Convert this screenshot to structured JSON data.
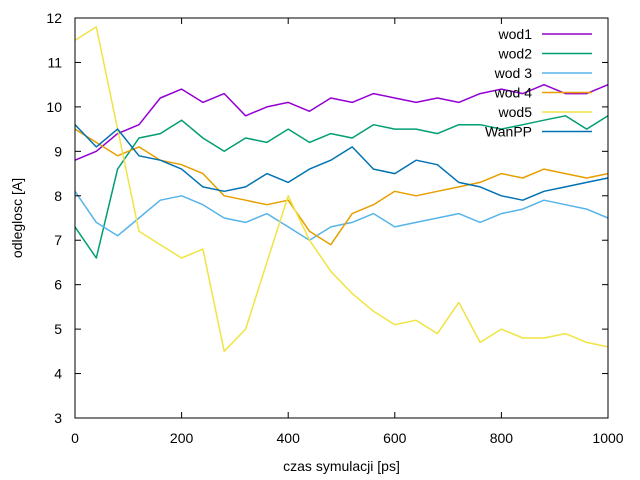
{
  "chart_data": {
    "type": "line",
    "title": "",
    "xlabel": "czas symulacji [ps]",
    "ylabel": "odleglosc [A]",
    "xlim": [
      0,
      1000
    ],
    "ylim": [
      3,
      12
    ],
    "xticks": [
      0,
      200,
      400,
      600,
      800,
      1000
    ],
    "yticks": [
      3,
      4,
      5,
      6,
      7,
      8,
      9,
      10,
      11,
      12
    ],
    "legend_position": "top-right",
    "grid": false,
    "x": [
      0,
      40,
      80,
      120,
      160,
      200,
      240,
      280,
      320,
      360,
      400,
      440,
      480,
      520,
      560,
      600,
      640,
      680,
      720,
      760,
      800,
      840,
      880,
      920,
      960,
      1000
    ],
    "series": [
      {
        "name": "wod1",
        "color": "#9400d3",
        "values": [
          8.8,
          9.0,
          9.4,
          9.6,
          10.2,
          10.4,
          10.1,
          10.3,
          9.8,
          10.0,
          10.1,
          9.9,
          10.2,
          10.1,
          10.3,
          10.2,
          10.1,
          10.2,
          10.1,
          10.3,
          10.4,
          10.3,
          10.5,
          10.3,
          10.3,
          10.5
        ]
      },
      {
        "name": "wod2",
        "color": "#009e73",
        "values": [
          7.3,
          6.6,
          8.6,
          9.3,
          9.4,
          9.7,
          9.3,
          9.0,
          9.3,
          9.2,
          9.5,
          9.2,
          9.4,
          9.3,
          9.6,
          9.5,
          9.5,
          9.4,
          9.6,
          9.6,
          9.5,
          9.6,
          9.7,
          9.8,
          9.5,
          9.8
        ]
      },
      {
        "name": "wod 3",
        "color": "#56b4e9",
        "values": [
          8.1,
          7.4,
          7.1,
          7.5,
          7.9,
          8.0,
          7.8,
          7.5,
          7.4,
          7.6,
          7.3,
          7.0,
          7.3,
          7.4,
          7.6,
          7.3,
          7.4,
          7.5,
          7.6,
          7.4,
          7.6,
          7.7,
          7.9,
          7.8,
          7.7,
          7.5
        ]
      },
      {
        "name": "wod 4",
        "color": "#e69f00",
        "values": [
          9.5,
          9.2,
          8.9,
          9.1,
          8.8,
          8.7,
          8.5,
          8.0,
          7.9,
          7.8,
          7.9,
          7.2,
          6.9,
          7.6,
          7.8,
          8.1,
          8.0,
          8.1,
          8.2,
          8.3,
          8.5,
          8.4,
          8.6,
          8.5,
          8.4,
          8.5
        ]
      },
      {
        "name": "wod5",
        "color": "#f0e442",
        "values": [
          11.5,
          11.8,
          9.5,
          7.2,
          6.9,
          6.6,
          6.8,
          4.5,
          5.0,
          6.5,
          8.0,
          7.0,
          6.3,
          5.8,
          5.4,
          5.1,
          5.2,
          4.9,
          5.6,
          4.7,
          5.0,
          4.8,
          4.8,
          4.9,
          4.7,
          4.6
        ]
      },
      {
        "name": "WanPP",
        "color": "#0072b2",
        "values": [
          9.6,
          9.1,
          9.5,
          8.9,
          8.8,
          8.6,
          8.2,
          8.1,
          8.2,
          8.5,
          8.3,
          8.6,
          8.8,
          9.1,
          8.6,
          8.5,
          8.8,
          8.7,
          8.3,
          8.2,
          8.0,
          7.9,
          8.1,
          8.2,
          8.3,
          8.4
        ]
      }
    ]
  }
}
